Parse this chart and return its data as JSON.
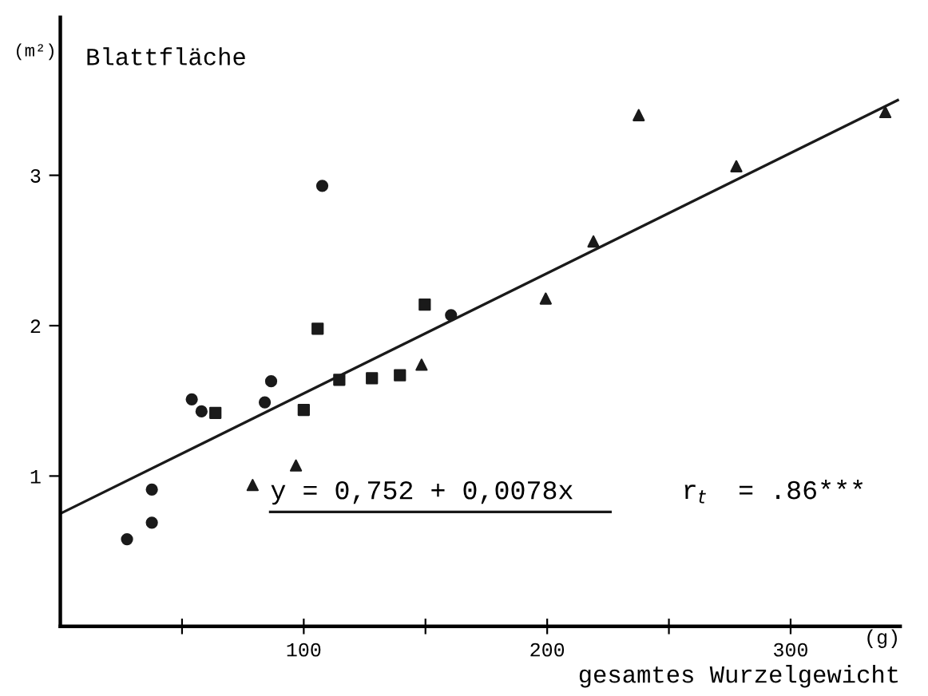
{
  "chart_data": {
    "type": "scatter",
    "title": "Blattfläche",
    "ylabel": "(m²)",
    "xlabel": "gesamtes Wurzelgewicht",
    "annotations": [
      "(g)",
      "y = 0,752 + 0,0078x",
      "r$_{t}$  = .86***"
    ],
    "xlim": [
      0,
      345
    ],
    "ylim": [
      0,
      4.05
    ],
    "xticks": [
      {
        "value": 50,
        "label": null
      },
      100,
      {
        "value": 150,
        "label": null
      },
      200,
      {
        "value": 250,
        "label": null
      },
      300
    ],
    "yticks": [
      1,
      2,
      3
    ],
    "grid": false,
    "legend": false,
    "series": [
      {
        "color": "#1a1a1a",
        "marker": "circle",
        "x": [
          27.4,
          37.6,
          37.6,
          54,
          58,
          84,
          86.6,
          107.6,
          160.5
        ],
        "values": [
          0.58,
          0.69,
          0.91,
          1.51,
          1.43,
          1.49,
          1.63,
          2.93,
          2.07
        ]
      },
      {
        "color": "#1a1a1a",
        "marker": "square",
        "x": [
          63.7,
          100,
          105.7,
          114.6,
          128,
          139.5,
          149.7
        ],
        "values": [
          1.42,
          1.44,
          1.98,
          1.64,
          1.65,
          1.67,
          2.14
        ]
      },
      {
        "color": "#1a1a1a",
        "marker": "triangle",
        "x": [
          79,
          148.4,
          199.4,
          219,
          237.6,
          277.7,
          338.9
        ],
        "values": [
          0.94,
          1.74,
          2.18,
          2.56,
          3.4,
          3.06,
          3.42
        ]
      },
      {
        "color": "#1a1a1a",
        "marker": "triangle",
        "x": [
          96.8
        ],
        "values": [
          1.07
        ]
      },
      {
        "type": "line",
        "color": "#1a1a1a",
        "marker": "none",
        "line_style": "solid",
        "x": [
          0,
          344
        ],
        "values": [
          0.75,
          3.5
        ]
      }
    ]
  }
}
